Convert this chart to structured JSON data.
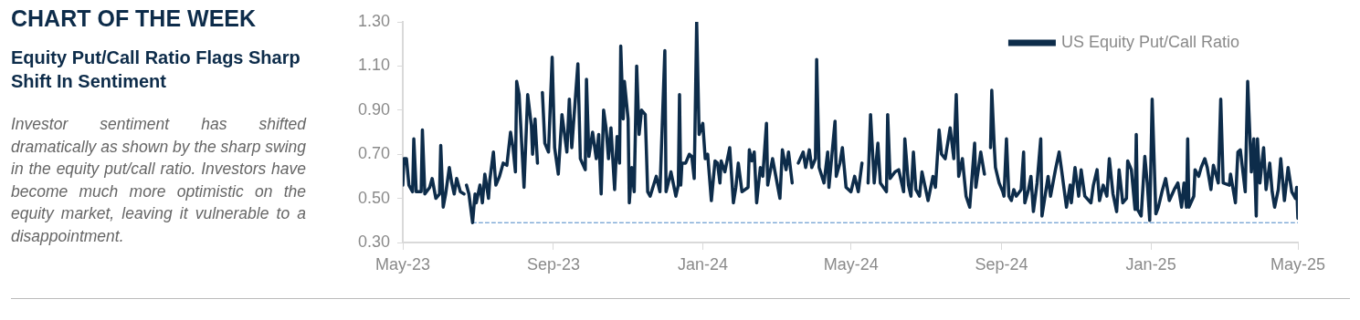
{
  "chart_data": {
    "type": "line",
    "title": "CHART OF THE WEEK",
    "subtitle": "Equity Put/Call Ratio Flags Sharp Shift In Sentiment",
    "annotations": [
      "Investor sentiment has shifted dramatically as shown by the sharp swing in the equity put/call ratio. Investors have become much more optimistic on the equity market, leaving it vulnerable to a disappointment."
    ],
    "xlim": [
      "2023-05-01",
      "2025-05-01"
    ],
    "xticks": [
      {
        "value": "2023-05-01",
        "label": "May-23"
      },
      {
        "value": "2023-09-01",
        "label": "Sep-23"
      },
      {
        "value": "2024-01-01",
        "label": "Jan-24"
      },
      {
        "value": "2024-05-01",
        "label": "May-24"
      },
      {
        "value": "2024-09-01",
        "label": "Sep-24"
      },
      {
        "value": "2025-01-01",
        "label": "Jan-25"
      },
      {
        "value": "2025-05-01",
        "label": "May-25"
      }
    ],
    "ylim": [
      0.3,
      1.3
    ],
    "yticks": [
      {
        "value": 0.3,
        "label": "0.30"
      },
      {
        "value": 0.5,
        "label": "0.50"
      },
      {
        "value": 0.7,
        "label": "0.70"
      },
      {
        "value": 0.9,
        "label": "0.90"
      },
      {
        "value": 1.1,
        "label": "1.10"
      },
      {
        "value": 1.3,
        "label": "1.30"
      }
    ],
    "grid": false,
    "legend": "top right",
    "marker": "none",
    "series": [
      {
        "name": "US Equity Put/Call Ratio",
        "color": "#0d2c4a",
        "line_style": "solid",
        "x": [
          "2023-05-01",
          "2023-05-02",
          "2023-05-04",
          "2023-05-06",
          "2023-05-09",
          "2023-05-10",
          "2023-05-12",
          "2023-05-16",
          "2023-05-17",
          "2023-05-19",
          "2023-05-23",
          "2023-05-25",
          "2023-05-28",
          "2023-05-31",
          "2023-06-01",
          "2023-06-03",
          "2023-06-05",
          "2023-06-08",
          "2023-06-10",
          "2023-06-12",
          "2023-06-14",
          "2023-06-17",
          "2023-06-20",
          "2023-06-21",
          "2023-06-22",
          "2023-06-24",
          "2023-06-27",
          "2023-06-29",
          "2023-06-30",
          "2023-07-03",
          "2023-07-05",
          "2023-07-07",
          "2023-07-10",
          "2023-07-11",
          "2023-07-14",
          "2023-07-16",
          "2023-07-19",
          "2023-07-22",
          "2023-07-25",
          "2023-07-28",
          "2023-07-30",
          "2023-08-01",
          "2023-08-02",
          "2023-08-04",
          "2023-08-08",
          "2023-08-11",
          "2023-08-14",
          "2023-08-15",
          "2023-08-17",
          "2023-08-19",
          "2023-08-21",
          "2023-08-23",
          "2023-08-25",
          "2023-08-28",
          "2023-08-31",
          "2023-09-02",
          "2023-09-05",
          "2023-09-08",
          "2023-09-12",
          "2023-09-14",
          "2023-09-16",
          "2023-09-21",
          "2023-09-23",
          "2023-09-27",
          "2023-09-28",
          "2023-09-30",
          "2023-10-03",
          "2023-10-06",
          "2023-10-08",
          "2023-10-10",
          "2023-10-12",
          "2023-10-14",
          "2023-10-16",
          "2023-10-18",
          "2023-10-21",
          "2023-10-23",
          "2023-10-25",
          "2023-10-26",
          "2023-10-28",
          "2023-10-29",
          "2023-11-01",
          "2023-11-02",
          "2023-11-04",
          "2023-11-06",
          "2023-11-08",
          "2023-11-10",
          "2023-11-12",
          "2023-11-15",
          "2023-11-17",
          "2023-11-19",
          "2023-11-24",
          "2023-11-27",
          "2023-12-01",
          "2023-12-02",
          "2023-12-06",
          "2023-12-10",
          "2023-12-12",
          "2023-12-13",
          "2023-12-14",
          "2023-12-15",
          "2023-12-18",
          "2023-12-21",
          "2023-12-23",
          "2023-12-25",
          "2023-12-27",
          "2023-12-29",
          "2024-01-01",
          "2024-01-03",
          "2024-01-05",
          "2024-01-08",
          "2024-01-11",
          "2024-01-13",
          "2024-01-15",
          "2024-01-16",
          "2024-01-19",
          "2024-01-23",
          "2024-01-26",
          "2024-01-28",
          "2024-01-30",
          "2024-02-02",
          "2024-02-07",
          "2024-02-08",
          "2024-02-10",
          "2024-02-12",
          "2024-02-14",
          "2024-02-17",
          "2024-02-19",
          "2024-02-22",
          "2024-02-23",
          "2024-02-27",
          "2024-02-29",
          "2024-03-04",
          "2024-03-06",
          "2024-03-09",
          "2024-03-11",
          "2024-03-14",
          "2024-03-16",
          "2024-03-19",
          "2024-03-23",
          "2024-03-25",
          "2024-03-28",
          "2024-03-30",
          "2024-04-02",
          "2024-04-03",
          "2024-04-05",
          "2024-04-09",
          "2024-04-12",
          "2024-04-13",
          "2024-04-18",
          "2024-04-19",
          "2024-04-22",
          "2024-04-24",
          "2024-04-27",
          "2024-05-01",
          "2024-05-04",
          "2024-05-07",
          "2024-05-10",
          "2024-05-12",
          "2024-05-15",
          "2024-05-17",
          "2024-05-20",
          "2024-05-23",
          "2024-05-25",
          "2024-05-30",
          "2024-05-31",
          "2024-06-02",
          "2024-06-06",
          "2024-06-09",
          "2024-06-13",
          "2024-06-14",
          "2024-06-17",
          "2024-06-19",
          "2024-06-21",
          "2024-06-23",
          "2024-06-26",
          "2024-06-28",
          "2024-07-03",
          "2024-07-07",
          "2024-07-09",
          "2024-07-12",
          "2024-07-14",
          "2024-07-17",
          "2024-07-21",
          "2024-07-24",
          "2024-07-26",
          "2024-07-28",
          "2024-07-31",
          "2024-08-03",
          "2024-08-06",
          "2024-08-10",
          "2024-08-11",
          "2024-08-15",
          "2024-08-18",
          "2024-08-20",
          "2024-08-23",
          "2024-08-24",
          "2024-08-26",
          "2024-08-27",
          "2024-08-30",
          "2024-09-02",
          "2024-09-03",
          "2024-09-05",
          "2024-09-07",
          "2024-09-09",
          "2024-09-11",
          "2024-09-13",
          "2024-09-17",
          "2024-09-19",
          "2024-09-20",
          "2024-09-23",
          "2024-09-25",
          "2024-09-27",
          "2024-09-30",
          "2024-10-03",
          "2024-10-04",
          "2024-10-09",
          "2024-10-11",
          "2024-10-15",
          "2024-10-18",
          "2024-10-20",
          "2024-10-24",
          "2024-10-27",
          "2024-10-28",
          "2024-10-31",
          "2024-11-03",
          "2024-11-05",
          "2024-11-08",
          "2024-11-13",
          "2024-11-15",
          "2024-11-18",
          "2024-11-20",
          "2024-11-23",
          "2024-11-26",
          "2024-11-28",
          "2024-12-01",
          "2024-12-04",
          "2024-12-06",
          "2024-12-09",
          "2024-12-12",
          "2024-12-13",
          "2024-12-16",
          "2024-12-19",
          "2024-12-20",
          "2024-12-21",
          "2024-12-24",
          "2024-12-26",
          "2024-12-27",
          "2024-12-29",
          "2024-12-31",
          "2025-01-02",
          "2025-01-05",
          "2025-01-07",
          "2025-01-10",
          "2025-01-13",
          "2025-01-16",
          "2025-01-20",
          "2025-01-23",
          "2025-01-26",
          "2025-01-28",
          "2025-01-30",
          "2025-01-31",
          "2025-02-01",
          "2025-02-05",
          "2025-02-06",
          "2025-02-09",
          "2025-02-11",
          "2025-02-14",
          "2025-02-16",
          "2025-02-19",
          "2025-02-21",
          "2025-02-25",
          "2025-02-27",
          "2025-03-01",
          "2025-03-06",
          "2025-03-07",
          "2025-03-11",
          "2025-03-13",
          "2025-03-15",
          "2025-03-19",
          "2025-03-21",
          "2025-03-24",
          "2025-03-26",
          "2025-03-28",
          "2025-03-29",
          "2025-03-31",
          "2025-04-03",
          "2025-04-05",
          "2025-04-08",
          "2025-04-10",
          "2025-04-12",
          "2025-04-15",
          "2025-04-17",
          "2025-04-20",
          "2025-04-23",
          "2025-04-26",
          "2025-04-29",
          "2025-04-30",
          "2025-05-01"
        ],
        "values": [
          0.56,
          0.68,
          0.68,
          0.56,
          0.53,
          0.77,
          0.53,
          0.53,
          0.81,
          0.52,
          0.55,
          0.59,
          0.5,
          0.52,
          0.74,
          0.46,
          0.52,
          0.64,
          0.57,
          0.52,
          0.59,
          0.53,
          0.52,
          null,
          0.56,
          0.52,
          0.39,
          0.52,
          0.48,
          0.56,
          0.48,
          0.61,
          0.5,
          0.58,
          0.71,
          0.56,
          0.6,
          0.66,
          0.65,
          0.8,
          0.73,
          0.62,
          1.03,
          0.97,
          0.55,
          0.97,
          0.83,
          0.7,
          0.86,
          0.66,
          null,
          0.98,
          0.75,
          0.71,
          1.14,
          0.73,
          0.61,
          0.88,
          0.71,
          0.95,
          0.73,
          1.11,
          0.68,
          0.63,
          1.04,
          0.69,
          0.8,
          0.68,
          0.79,
          0.52,
          0.9,
          0.82,
          0.68,
          0.82,
          0.54,
          0.78,
          0.66,
          1.19,
          0.86,
          1.03,
          0.86,
          0.48,
          0.64,
          0.53,
          1.1,
          0.79,
          0.9,
          0.88,
          0.53,
          0.51,
          0.6,
          0.53,
          1.17,
          0.53,
          0.62,
          0.51,
          0.56,
          0.97,
          0.56,
          0.66,
          0.66,
          0.7,
          0.69,
          0.59,
          1.3,
          0.79,
          0.84,
          0.68,
          0.7,
          0.49,
          0.67,
          0.66,
          0.57,
          0.67,
          0.62,
          0.73,
          0.48,
          0.55,
          0.66,
          0.53,
          0.55,
          0.72,
          0.67,
          0.71,
          0.48,
          0.64,
          0.6,
          0.84,
          0.56,
          0.68,
          0.62,
          0.5,
          0.72,
          0.63,
          0.71,
          0.57,
          null,
          0.66,
          0.71,
          0.64,
          0.72,
          0.64,
          0.68,
          1.13,
          0.64,
          0.57,
          0.71,
          0.55,
          0.85,
          0.6,
          0.66,
          0.73,
          0.55,
          0.53,
          0.6,
          0.53,
          0.66,
          null,
          0.57,
          0.88,
          0.57,
          0.75,
          0.57,
          0.53,
          0.88,
          0.59,
          0.62,
          0.63,
          0.53,
          0.77,
          0.56,
          0.51,
          0.71,
          0.54,
          0.51,
          0.62,
          0.49,
          0.6,
          0.55,
          0.81,
          0.7,
          0.68,
          0.82,
          0.68,
          0.97,
          0.6,
          0.68,
          0.51,
          0.46,
          0.75,
          0.55,
          0.71,
          0.61,
          null,
          0.73,
          0.99,
          0.74,
          0.64,
          0.57,
          0.53,
          0.51,
          0.77,
          0.51,
          0.49,
          0.54,
          0.51,
          0.54,
          0.71,
          0.48,
          0.54,
          0.6,
          0.44,
          0.57,
          0.77,
          0.42,
          0.6,
          0.51,
          0.63,
          0.71,
          0.63,
          0.46,
          0.56,
          0.48,
          0.64,
          0.51,
          0.63,
          0.51,
          0.48,
          0.56,
          0.63,
          0.49,
          0.56,
          0.51,
          0.68,
          0.52,
          0.44,
          0.63,
          0.48,
          0.5,
          0.67,
          0.63,
          0.45,
          0.79,
          0.45,
          0.42,
          0.6,
          0.69,
          0.57,
          0.4,
          0.95,
          0.43,
          0.46,
          0.53,
          0.59,
          0.49,
          0.54,
          0.57,
          0.46,
          0.57,
          0.46,
          0.77,
          0.46,
          0.51,
          0.63,
          0.6,
          0.64,
          0.68,
          0.64,
          0.54,
          0.65,
          0.57,
          0.95,
          0.57,
          0.56,
          0.61,
          0.48,
          0.71,
          0.72,
          0.53,
          1.03,
          0.62,
          0.77,
          0.42,
          0.77,
          0.57,
          0.73,
          0.54,
          0.66,
          0.53,
          0.46,
          0.54,
          0.68,
          0.49,
          0.64,
          0.53,
          0.5,
          0.55,
          0.41
        ]
      },
      {
        "type": "line",
        "color": "#4a86c5",
        "line_style": "dashed",
        "x": [
          "2023-06-27",
          "2025-05-01"
        ],
        "values": [
          0.39,
          0.39
        ]
      }
    ]
  }
}
